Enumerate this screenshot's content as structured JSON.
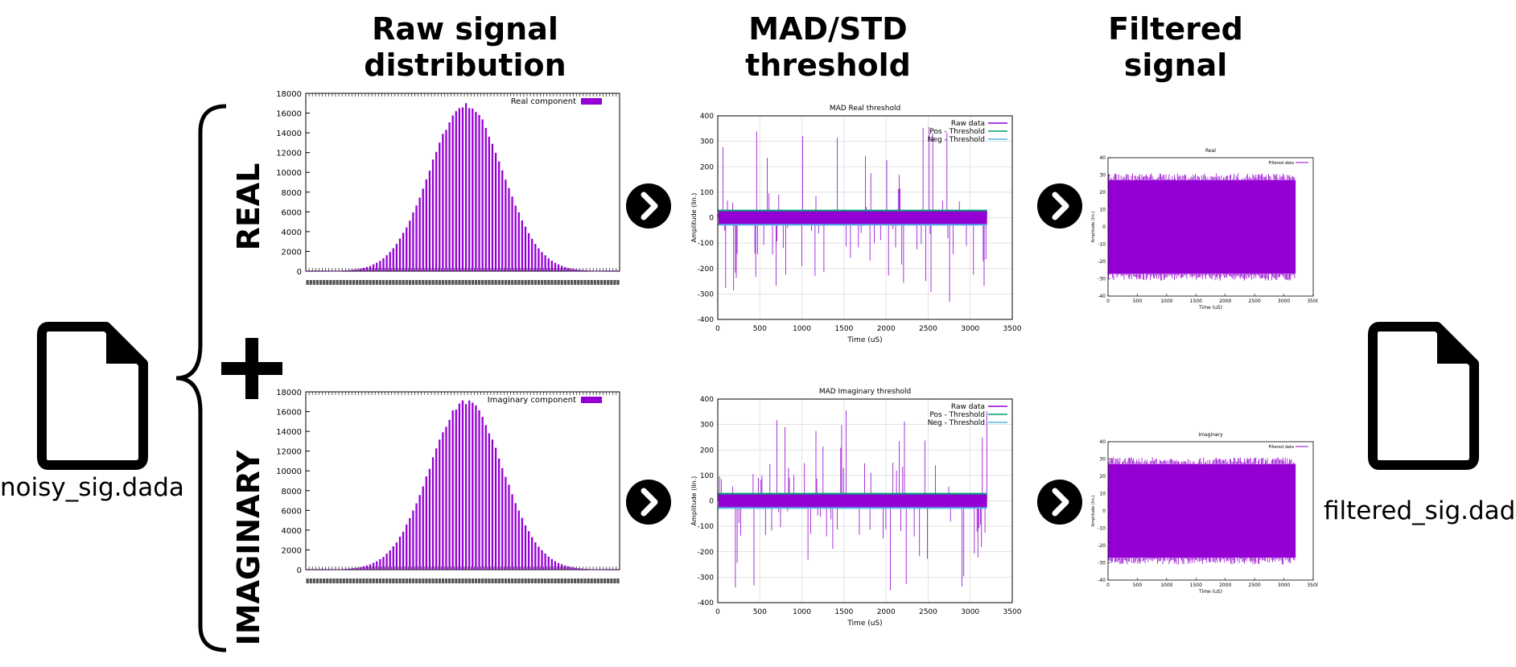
{
  "headers": {
    "raw": "Raw signal\ndistribution",
    "mad": "MAD/STD\nthreshold",
    "filtered": "Filtered\nsignal"
  },
  "side_labels": {
    "real": "REAL",
    "imaginary": "IMAGINARY"
  },
  "files": {
    "input": "noisy_sig.dada",
    "output": "filtered_sig.dada"
  },
  "icons": {
    "file": "document-icon",
    "arrow": "chevron-right-circle-icon",
    "plus": "plus-icon",
    "brace": "curly-brace-icon"
  },
  "colors": {
    "purple": "#9400d3",
    "teal": "#009e73",
    "cyan": "#56b4e9"
  },
  "chart_data": [
    {
      "id": "hist-real",
      "type": "bar",
      "legend": "Real component",
      "legend_position": "top-right",
      "ylim": [
        0,
        18000
      ],
      "yticks": [
        "0",
        "2000",
        "4000",
        "6000",
        "8000",
        "10000",
        "12000",
        "14000",
        "16000",
        "18000"
      ],
      "n_bins": 95,
      "peak": 16800,
      "peak_bin": 48,
      "grid": false
    },
    {
      "id": "hist-imag",
      "type": "bar",
      "legend": "Imaginary component",
      "legend_position": "top-right",
      "ylim": [
        0,
        18000
      ],
      "yticks": [
        "0",
        "2000",
        "4000",
        "6000",
        "8000",
        "10000",
        "12000",
        "14000",
        "16000",
        "18000"
      ],
      "n_bins": 95,
      "peak": 17000,
      "peak_bin": 48,
      "grid": false
    },
    {
      "id": "mad-real",
      "type": "line",
      "title": "MAD Real threshold",
      "xlabel": "Time (uS)",
      "ylabel": "Amplitude (lin.)",
      "xlim": [
        0,
        3500
      ],
      "ylim": [
        -400,
        400
      ],
      "xticks": [
        "0",
        "500",
        "1000",
        "1500",
        "2000",
        "2500",
        "3000",
        "3500"
      ],
      "yticks": [
        "400",
        "300",
        "200",
        "100",
        "0",
        "-100",
        "-200",
        "-300",
        "-400"
      ],
      "series": [
        {
          "name": "Raw data"
        },
        {
          "name": "Pos - Threshold",
          "value": 28
        },
        {
          "name": "Neg - Threshold",
          "value": -28
        }
      ],
      "data_extent_x": 3200,
      "legend_position": "top-right",
      "grid": true
    },
    {
      "id": "mad-imag",
      "type": "line",
      "title": "MAD Imaginary threshold",
      "xlabel": "Time (uS)",
      "ylabel": "Amplitude (lin.)",
      "xlim": [
        0,
        3500
      ],
      "ylim": [
        -400,
        400
      ],
      "xticks": [
        "0",
        "500",
        "1000",
        "1500",
        "2000",
        "2500",
        "3000",
        "3500"
      ],
      "yticks": [
        "400",
        "300",
        "200",
        "100",
        "0",
        "-100",
        "-200",
        "-300",
        "-400"
      ],
      "series": [
        {
          "name": "Raw data"
        },
        {
          "name": "Pos - Threshold",
          "value": 28
        },
        {
          "name": "Neg - Threshold",
          "value": -28
        }
      ],
      "data_extent_x": 3200,
      "legend_position": "top-right",
      "grid": true
    },
    {
      "id": "filt-real",
      "type": "area",
      "title": "Real",
      "xlabel": "Time (uS)",
      "ylabel": "Amplitude (lin.)",
      "xlim": [
        0,
        3500
      ],
      "ylim": [
        -40,
        40
      ],
      "xticks": [
        "0",
        "500",
        "1000",
        "1500",
        "2000",
        "2500",
        "3000",
        "3500"
      ],
      "yticks": [
        "40",
        "30",
        "20",
        "10",
        "0",
        "-10",
        "-20",
        "-30",
        "-40"
      ],
      "series": [
        {
          "name": "Filtered data"
        }
      ],
      "band": [
        -27,
        27
      ],
      "spikes": [
        -31,
        31
      ],
      "data_extent_x": 3200,
      "legend_position": "top-right"
    },
    {
      "id": "filt-imag",
      "type": "area",
      "title": "Imaginary",
      "xlabel": "Time (uS)",
      "ylabel": "Amplitude (lin.)",
      "xlim": [
        0,
        3500
      ],
      "ylim": [
        -40,
        40
      ],
      "xticks": [
        "0",
        "500",
        "1000",
        "1500",
        "2000",
        "2500",
        "3000",
        "3500"
      ],
      "yticks": [
        "40",
        "30",
        "20",
        "10",
        "0",
        "-10",
        "-20",
        "-30",
        "-40"
      ],
      "series": [
        {
          "name": "Filtered data"
        }
      ],
      "band": [
        -27,
        27
      ],
      "spikes": [
        -31,
        31
      ],
      "data_extent_x": 3200,
      "legend_position": "top-right"
    }
  ]
}
